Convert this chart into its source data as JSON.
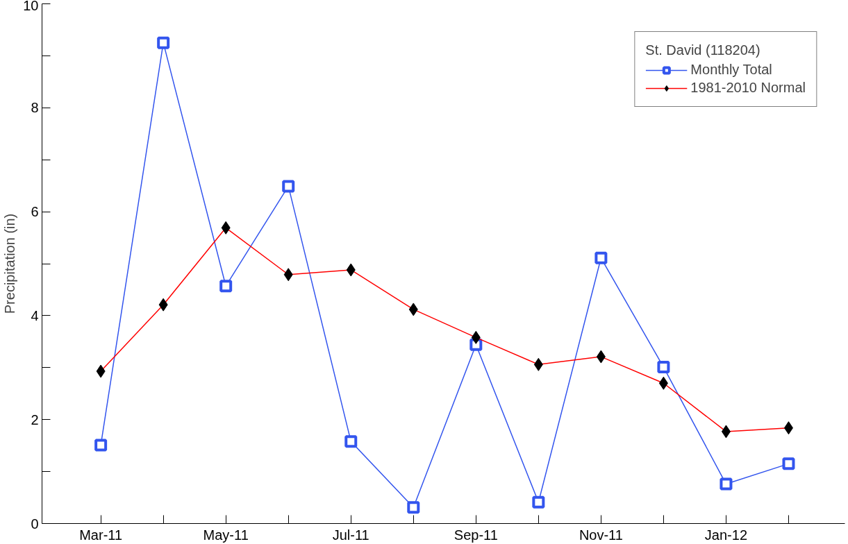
{
  "chart_data": {
    "type": "line",
    "ylabel": "Precipitation (in)",
    "legend_title": "St. David (118204)",
    "legend": "top right",
    "grid": false,
    "categories": [
      "Mar-11",
      null,
      "May-11",
      null,
      "Jul-11",
      null,
      "Sep-11",
      null,
      "Nov-11",
      null,
      "Jan-12",
      null
    ],
    "series": [
      {
        "name": "Monthly Total",
        "color": "#3355ee",
        "marker": "square",
        "values": [
          1.51,
          9.25,
          4.57,
          6.49,
          1.58,
          0.31,
          3.44,
          0.41,
          5.11,
          3.01,
          0.76,
          1.15
        ]
      },
      {
        "name": "1981-2010 Normal",
        "color": "#ff0000",
        "marker": "diamond",
        "values": [
          2.93,
          4.21,
          5.69,
          4.79,
          4.88,
          4.12,
          3.58,
          3.06,
          3.21,
          2.7,
          1.77,
          1.84
        ]
      }
    ],
    "ylim": [
      0,
      10
    ],
    "yticks": [
      0,
      {
        "value": 1,
        "label": null
      },
      2,
      {
        "value": 3,
        "label": null
      },
      4,
      {
        "value": 5,
        "label": null
      },
      6,
      {
        "value": 7,
        "label": null
      },
      8,
      {
        "value": 9,
        "label": null
      },
      10
    ]
  }
}
